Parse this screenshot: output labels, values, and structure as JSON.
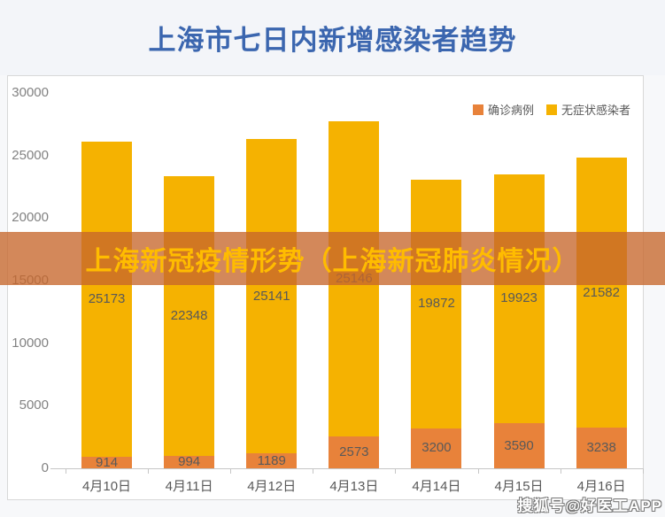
{
  "page": {
    "title": "上海市七日内新增感染者趋势",
    "title_color": "#3B66AF"
  },
  "overlay": {
    "text": "上海新冠疫情形势（上海新冠肺炎情况）",
    "text_color": "#FFBC00",
    "band_color": "rgba(198,103,44,0.78)"
  },
  "watermark": {
    "text": "搜狐号@好医工APP"
  },
  "chart_data": {
    "type": "bar",
    "stacked": true,
    "title": "上海市七日内新增感染者趋势",
    "categories": [
      "4月10日",
      "4月11日",
      "4月12日",
      "4月13日",
      "4月14日",
      "4月15日",
      "4月16日"
    ],
    "series": [
      {
        "name": "确诊病例",
        "color": "#E8823A",
        "values": [
          914,
          994,
          1189,
          2573,
          3200,
          3590,
          3238
        ]
      },
      {
        "name": "无症状感染者",
        "color": "#F5B201",
        "values": [
          25173,
          22348,
          25141,
          25146,
          19872,
          19923,
          21582
        ]
      }
    ],
    "xlabel": "",
    "ylabel": "",
    "ylim": [
      0,
      30000
    ],
    "yticks": [
      0,
      5000,
      10000,
      15000,
      20000,
      25000,
      30000
    ],
    "grid": false,
    "legend_position": "top-right",
    "label_color": "#595959",
    "axis_color": "#C6C6C6",
    "tick_label_color": "#828282"
  }
}
